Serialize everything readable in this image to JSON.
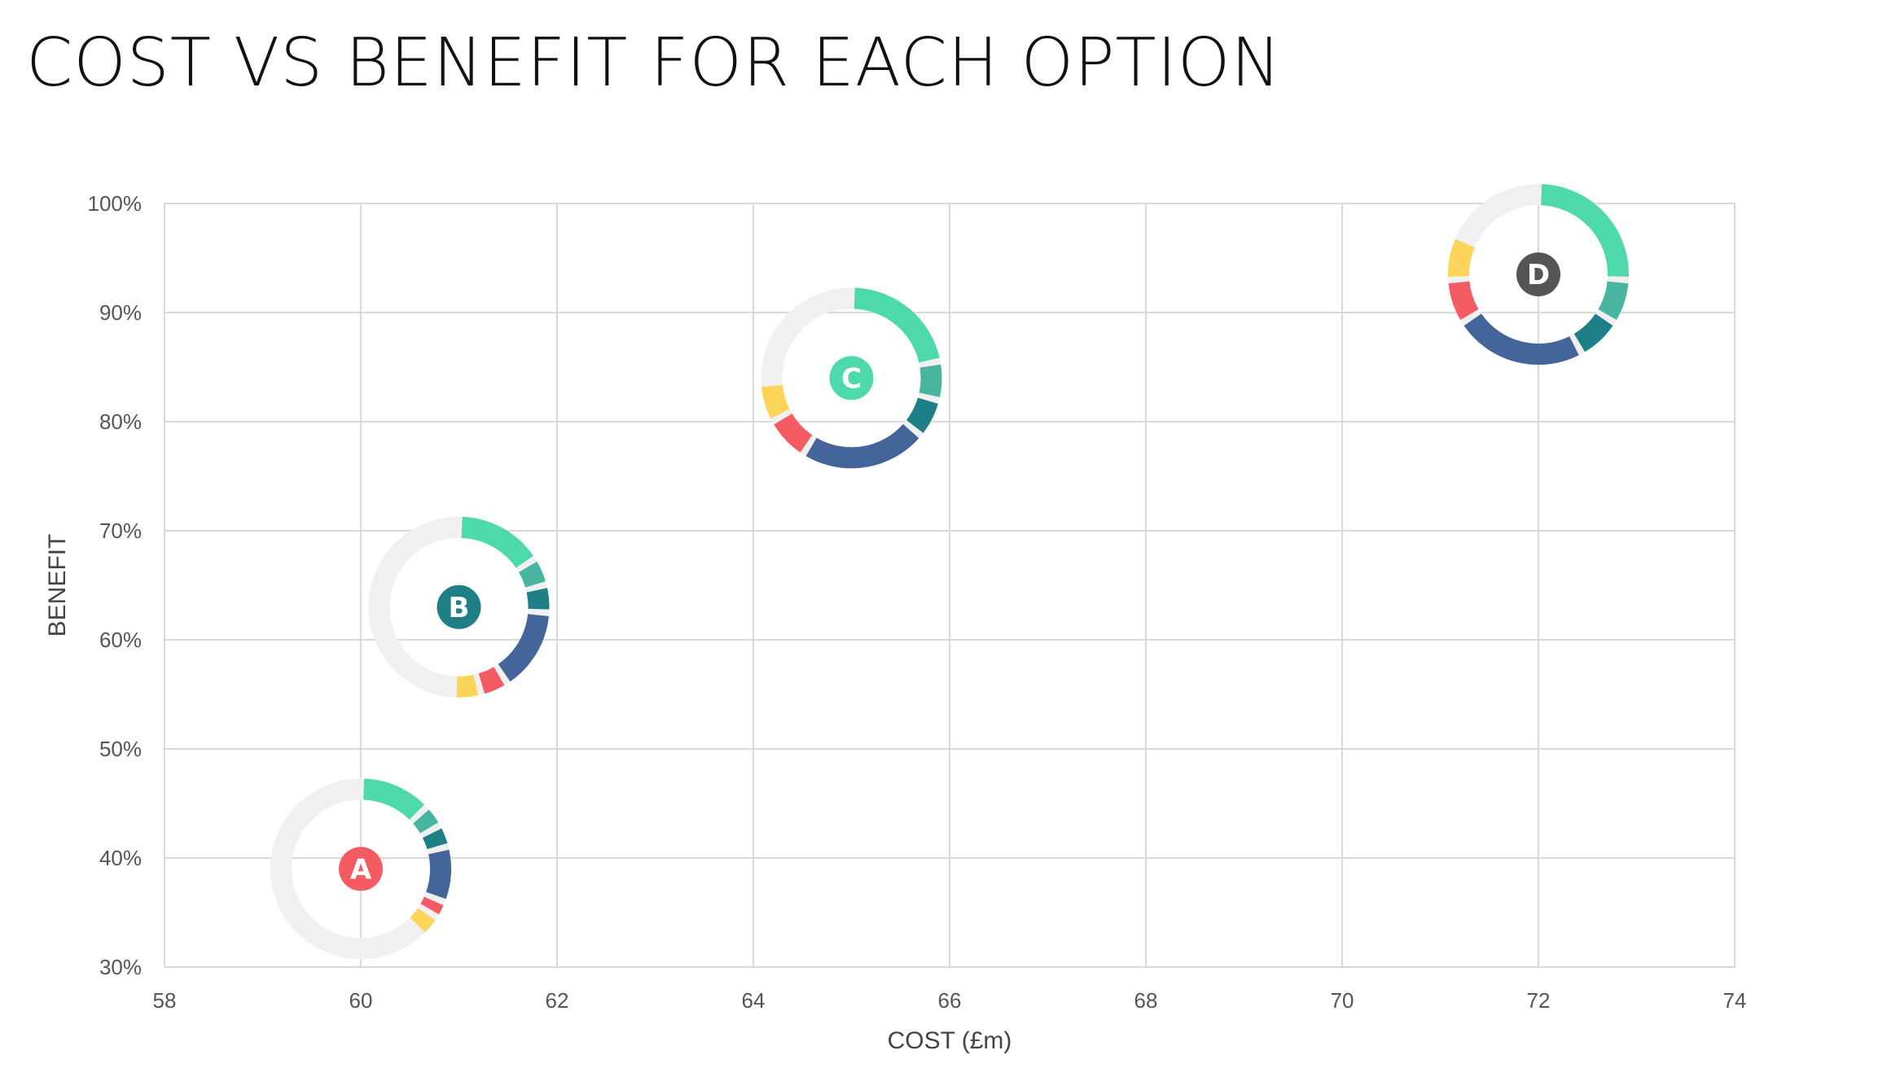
{
  "chart_data": {
    "type": "scatter",
    "title": "COST VS BENEFIT FOR EACH OPTION",
    "xlabel": "COST (£m)",
    "ylabel": "BENEFIT",
    "xlim": [
      58,
      74
    ],
    "ylim": [
      30,
      100
    ],
    "x_ticks": [
      58,
      60,
      62,
      64,
      66,
      68,
      70,
      72,
      74
    ],
    "x_tick_labels": [
      "58",
      "60",
      "62",
      "64",
      "66",
      "68",
      "70",
      "72",
      "74"
    ],
    "y_ticks": [
      30,
      40,
      50,
      60,
      70,
      80,
      90,
      100
    ],
    "y_tick_labels": [
      "30%",
      "40%",
      "50%",
      "60%",
      "70%",
      "80%",
      "90%",
      "100%"
    ],
    "grid": true,
    "segment_colors": [
      "#4dd9ab",
      "#47b5a0",
      "#1e7f86",
      "#44659a",
      "#f45b63",
      "#fcd45a"
    ],
    "remainder_color": "#f0f0f0",
    "series": [
      {
        "name": "A",
        "x": 60,
        "y": 39,
        "label_color": "#f45b63",
        "segments": [
          0.13,
          0.04,
          0.04,
          0.1,
          0.03,
          0.04
        ]
      },
      {
        "name": "B",
        "x": 61,
        "y": 63,
        "label_color": "#1e7f86",
        "segments": [
          0.16,
          0.05,
          0.05,
          0.15,
          0.05,
          0.05
        ]
      },
      {
        "name": "C",
        "x": 65,
        "y": 84,
        "label_color": "#4dd9ab",
        "segments": [
          0.22,
          0.07,
          0.07,
          0.23,
          0.08,
          0.07
        ]
      },
      {
        "name": "D",
        "x": 72,
        "y": 93.5,
        "label_color": "#555555",
        "segments": [
          0.26,
          0.08,
          0.08,
          0.24,
          0.08,
          0.08
        ]
      }
    ]
  }
}
